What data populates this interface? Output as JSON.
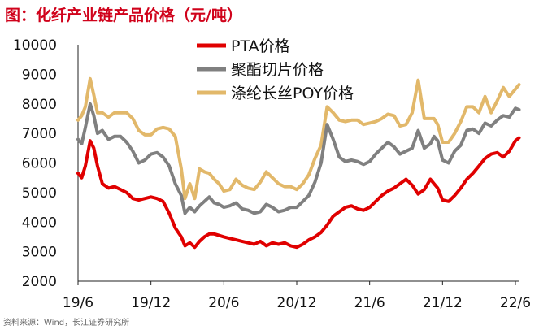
{
  "title": "图：化纤产业链产品价格（元/吨）",
  "source": "资料来源：Wind，长江证券研究所",
  "chart_data": {
    "type": "line",
    "ylim": [
      2000,
      10000
    ],
    "yticks": [
      "10000",
      "9000",
      "8000",
      "7000",
      "6000",
      "5000",
      "4000",
      "3000",
      "2000"
    ],
    "ytick_values": [
      10000,
      9000,
      8000,
      7000,
      6000,
      5000,
      4000,
      3000,
      2000
    ],
    "xlim": [
      0,
      36
    ],
    "xticks": [
      "19/6",
      "19/12",
      "20/6",
      "20/12",
      "21/6",
      "21/12",
      "22/6"
    ],
    "xtick_values": [
      0,
      6,
      12,
      18,
      24,
      30,
      36
    ],
    "legend_position": "top",
    "series": [
      {
        "name": "PTA价格",
        "color": "#e00000",
        "x": [
          0,
          0.3,
          0.6,
          1.0,
          1.3,
          1.6,
          2.0,
          2.5,
          3.0,
          3.5,
          4.0,
          4.5,
          5.0,
          5.5,
          6.0,
          6.5,
          7.0,
          7.5,
          8.0,
          8.5,
          8.8,
          9.2,
          9.6,
          10.0,
          10.4,
          10.8,
          11.2,
          11.6,
          12.0,
          12.5,
          13.0,
          13.5,
          14.0,
          14.5,
          15.0,
          15.5,
          16.0,
          16.5,
          17.0,
          17.5,
          18.0,
          18.5,
          19.0,
          19.5,
          20.0,
          20.5,
          21.0,
          21.5,
          22.0,
          22.5,
          23.0,
          23.5,
          24.0,
          24.5,
          25.0,
          25.5,
          26.0,
          26.5,
          27.0,
          27.5,
          28.0,
          28.5,
          29.0,
          29.3,
          29.6,
          30.0,
          30.5,
          31.0,
          31.5,
          32.0,
          32.5,
          33.0,
          33.5,
          34.0,
          34.5,
          35.0,
          35.5,
          36.0,
          36.3
        ],
        "y": [
          5650,
          5500,
          5900,
          6750,
          6500,
          5900,
          5300,
          5150,
          5200,
          5100,
          5000,
          4800,
          4750,
          4800,
          4850,
          4800,
          4700,
          4300,
          3800,
          3500,
          3200,
          3300,
          3150,
          3350,
          3500,
          3600,
          3600,
          3550,
          3500,
          3450,
          3400,
          3350,
          3300,
          3250,
          3350,
          3200,
          3300,
          3250,
          3300,
          3200,
          3150,
          3250,
          3400,
          3500,
          3650,
          3900,
          4200,
          4350,
          4500,
          4550,
          4450,
          4400,
          4500,
          4700,
          4900,
          5050,
          5150,
          5300,
          5450,
          5250,
          4950,
          5100,
          5450,
          5300,
          5150,
          4750,
          4700,
          4900,
          5150,
          5450,
          5650,
          5900,
          6150,
          6300,
          6350,
          6200,
          6400,
          6750,
          6850
        ]
      },
      {
        "name": "聚酯切片价格",
        "color": "#808080",
        "x": [
          0,
          0.3,
          0.6,
          1.0,
          1.3,
          1.6,
          2.0,
          2.5,
          3.0,
          3.5,
          4.0,
          4.5,
          5.0,
          5.5,
          6.0,
          6.5,
          7.0,
          7.5,
          8.0,
          8.5,
          8.8,
          9.2,
          9.6,
          10.0,
          10.4,
          10.8,
          11.2,
          11.6,
          12.0,
          12.5,
          13.0,
          13.5,
          14.0,
          14.5,
          15.0,
          15.5,
          16.0,
          16.5,
          17.0,
          17.5,
          18.0,
          18.5,
          19.0,
          19.5,
          20.0,
          20.5,
          21.0,
          21.5,
          22.0,
          22.5,
          23.0,
          23.5,
          24.0,
          24.5,
          25.0,
          25.5,
          26.0,
          26.5,
          27.0,
          27.5,
          28.0,
          28.5,
          29.0,
          29.3,
          29.6,
          30.0,
          30.5,
          31.0,
          31.5,
          32.0,
          32.5,
          33.0,
          33.5,
          34.0,
          34.5,
          35.0,
          35.5,
          36.0,
          36.3
        ],
        "y": [
          6800,
          6650,
          7200,
          8000,
          7600,
          7000,
          7100,
          6800,
          6900,
          6900,
          6700,
          6400,
          6000,
          6100,
          6300,
          6350,
          6200,
          5900,
          5300,
          4900,
          4300,
          4500,
          4350,
          4550,
          4700,
          4850,
          4650,
          4600,
          4500,
          4550,
          4650,
          4450,
          4400,
          4300,
          4350,
          4600,
          4500,
          4350,
          4400,
          4500,
          4500,
          4700,
          4900,
          5350,
          6000,
          7300,
          6800,
          6200,
          6050,
          6100,
          6050,
          5950,
          6050,
          6300,
          6500,
          6700,
          6550,
          6300,
          6400,
          6500,
          7100,
          6500,
          6650,
          6900,
          6750,
          6100,
          6000,
          6400,
          6600,
          7100,
          7150,
          7000,
          7350,
          7250,
          7450,
          7600,
          7550,
          7850,
          7800
        ]
      },
      {
        "name": "涤纶长丝POY价格",
        "color": "#e2b86a",
        "x": [
          0,
          0.3,
          0.6,
          1.0,
          1.3,
          1.6,
          2.0,
          2.5,
          3.0,
          3.5,
          4.0,
          4.5,
          5.0,
          5.5,
          6.0,
          6.5,
          7.0,
          7.5,
          8.0,
          8.5,
          8.8,
          9.2,
          9.6,
          10.0,
          10.4,
          10.8,
          11.2,
          11.6,
          12.0,
          12.5,
          13.0,
          13.5,
          14.0,
          14.5,
          15.0,
          15.5,
          16.0,
          16.5,
          17.0,
          17.5,
          18.0,
          18.5,
          19.0,
          19.5,
          20.0,
          20.5,
          21.0,
          21.5,
          22.0,
          22.5,
          23.0,
          23.5,
          24.0,
          24.5,
          25.0,
          25.5,
          26.0,
          26.5,
          27.0,
          27.5,
          28.0,
          28.5,
          29.0,
          29.3,
          29.6,
          30.0,
          30.5,
          31.0,
          31.5,
          32.0,
          32.5,
          33.0,
          33.5,
          34.0,
          34.5,
          35.0,
          35.5,
          36.0,
          36.3
        ],
        "y": [
          7450,
          7600,
          7900,
          8850,
          8300,
          7700,
          7700,
          7550,
          7700,
          7700,
          7700,
          7500,
          7100,
          6950,
          6950,
          7150,
          7200,
          7150,
          6900,
          5800,
          4800,
          5300,
          4800,
          5800,
          5700,
          5650,
          5450,
          5300,
          5050,
          5100,
          5450,
          5250,
          5150,
          5100,
          5350,
          5700,
          5500,
          5300,
          5200,
          5200,
          5100,
          5300,
          5600,
          6150,
          6600,
          7900,
          7700,
          7450,
          7400,
          7450,
          7450,
          7300,
          7350,
          7400,
          7500,
          7650,
          7600,
          7250,
          7300,
          7700,
          8800,
          7500,
          7500,
          7500,
          7300,
          6700,
          6700,
          7000,
          7400,
          7900,
          7900,
          7700,
          8250,
          7700,
          8100,
          8550,
          8250,
          8500,
          8650
        ]
      }
    ]
  }
}
